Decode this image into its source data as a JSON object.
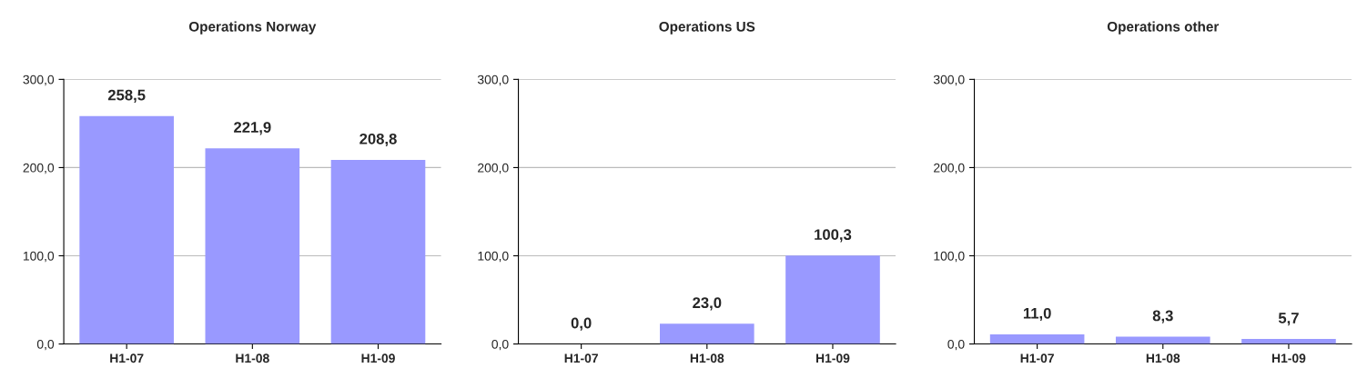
{
  "chart_data": [
    {
      "type": "bar",
      "title": "Operations Norway",
      "categories": [
        "H1-07",
        "H1-08",
        "H1-09"
      ],
      "values": [
        258.5,
        221.9,
        208.8
      ],
      "value_labels": [
        "258,5",
        "221,9",
        "208,8"
      ],
      "color": "#9999ff",
      "ylim": [
        0,
        300
      ],
      "yticks": [
        {
          "value": 0,
          "label": "0,0"
        },
        {
          "value": 100,
          "label": "100,0"
        },
        {
          "value": 200,
          "label": "200,0"
        },
        {
          "value": 300,
          "label": "300,0"
        }
      ],
      "grid": "y"
    },
    {
      "type": "bar",
      "title": "Operations US",
      "categories": [
        "H1-07",
        "H1-08",
        "H1-09"
      ],
      "values": [
        0.0,
        23.0,
        100.3
      ],
      "value_labels": [
        "0,0",
        "23,0",
        "100,3"
      ],
      "color": "#9999ff",
      "ylim": [
        0,
        300
      ],
      "yticks": [
        {
          "value": 0,
          "label": "0,0"
        },
        {
          "value": 100,
          "label": "100,0"
        },
        {
          "value": 200,
          "label": "200,0"
        },
        {
          "value": 300,
          "label": "300,0"
        }
      ],
      "grid": "y"
    },
    {
      "type": "bar",
      "title": "Operations other",
      "categories": [
        "H1-07",
        "H1-08",
        "H1-09"
      ],
      "values": [
        11.0,
        8.3,
        5.7
      ],
      "value_labels": [
        "11,0",
        "8,3",
        "5,7"
      ],
      "color": "#9999ff",
      "ylim": [
        0,
        300
      ],
      "yticks": [
        {
          "value": 0,
          "label": "0,0"
        },
        {
          "value": 100,
          "label": "100,0"
        },
        {
          "value": 200,
          "label": "200,0"
        },
        {
          "value": 300,
          "label": "300,0"
        }
      ],
      "grid": "y"
    }
  ]
}
